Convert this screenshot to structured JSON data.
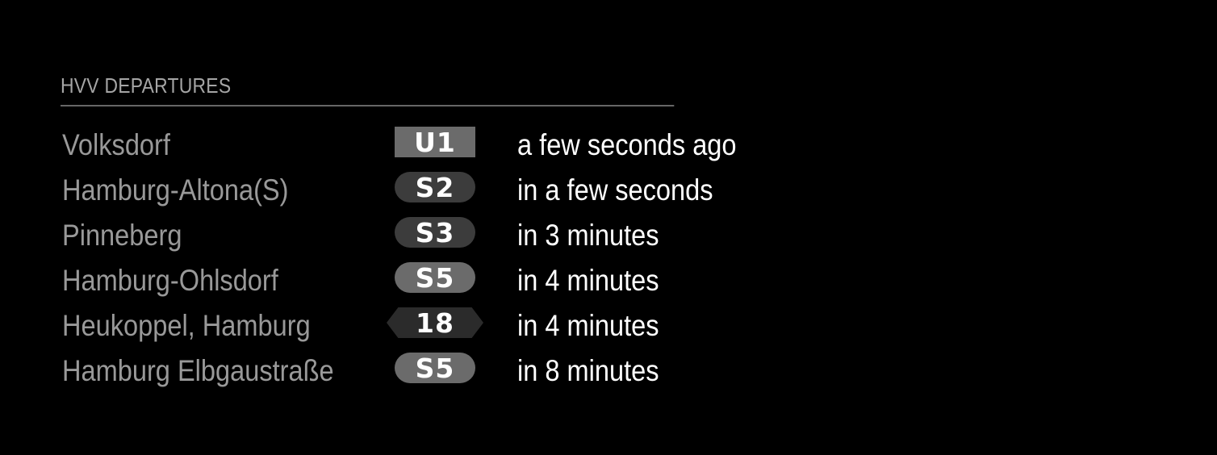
{
  "module": {
    "header": "HVV DEPARTURES"
  },
  "departures": [
    {
      "station": "Volksdorf",
      "line": "U1",
      "badge_shape": "rect",
      "badge_color": "#6b6b6b",
      "time": "a few seconds ago"
    },
    {
      "station": "Hamburg-Altona(S)",
      "line": "S2",
      "badge_shape": "pill",
      "badge_color": "#3c3c3c",
      "time": "in a few seconds"
    },
    {
      "station": "Pinneberg",
      "line": "S3",
      "badge_shape": "pill",
      "badge_color": "#3c3c3c",
      "time": "in 3 minutes"
    },
    {
      "station": "Hamburg-Ohlsdorf",
      "line": "S5",
      "badge_shape": "pill",
      "badge_color": "#6b6b6b",
      "time": "in 4 minutes"
    },
    {
      "station": "Heukoppel, Hamburg",
      "line": "18",
      "badge_shape": "hex",
      "badge_color": "#2b2b2b",
      "time": "in 4 minutes"
    },
    {
      "station": "Hamburg Elbgaustraße",
      "line": "S5",
      "badge_shape": "pill",
      "badge_color": "#6b6b6b",
      "time": "in 8 minutes"
    }
  ]
}
